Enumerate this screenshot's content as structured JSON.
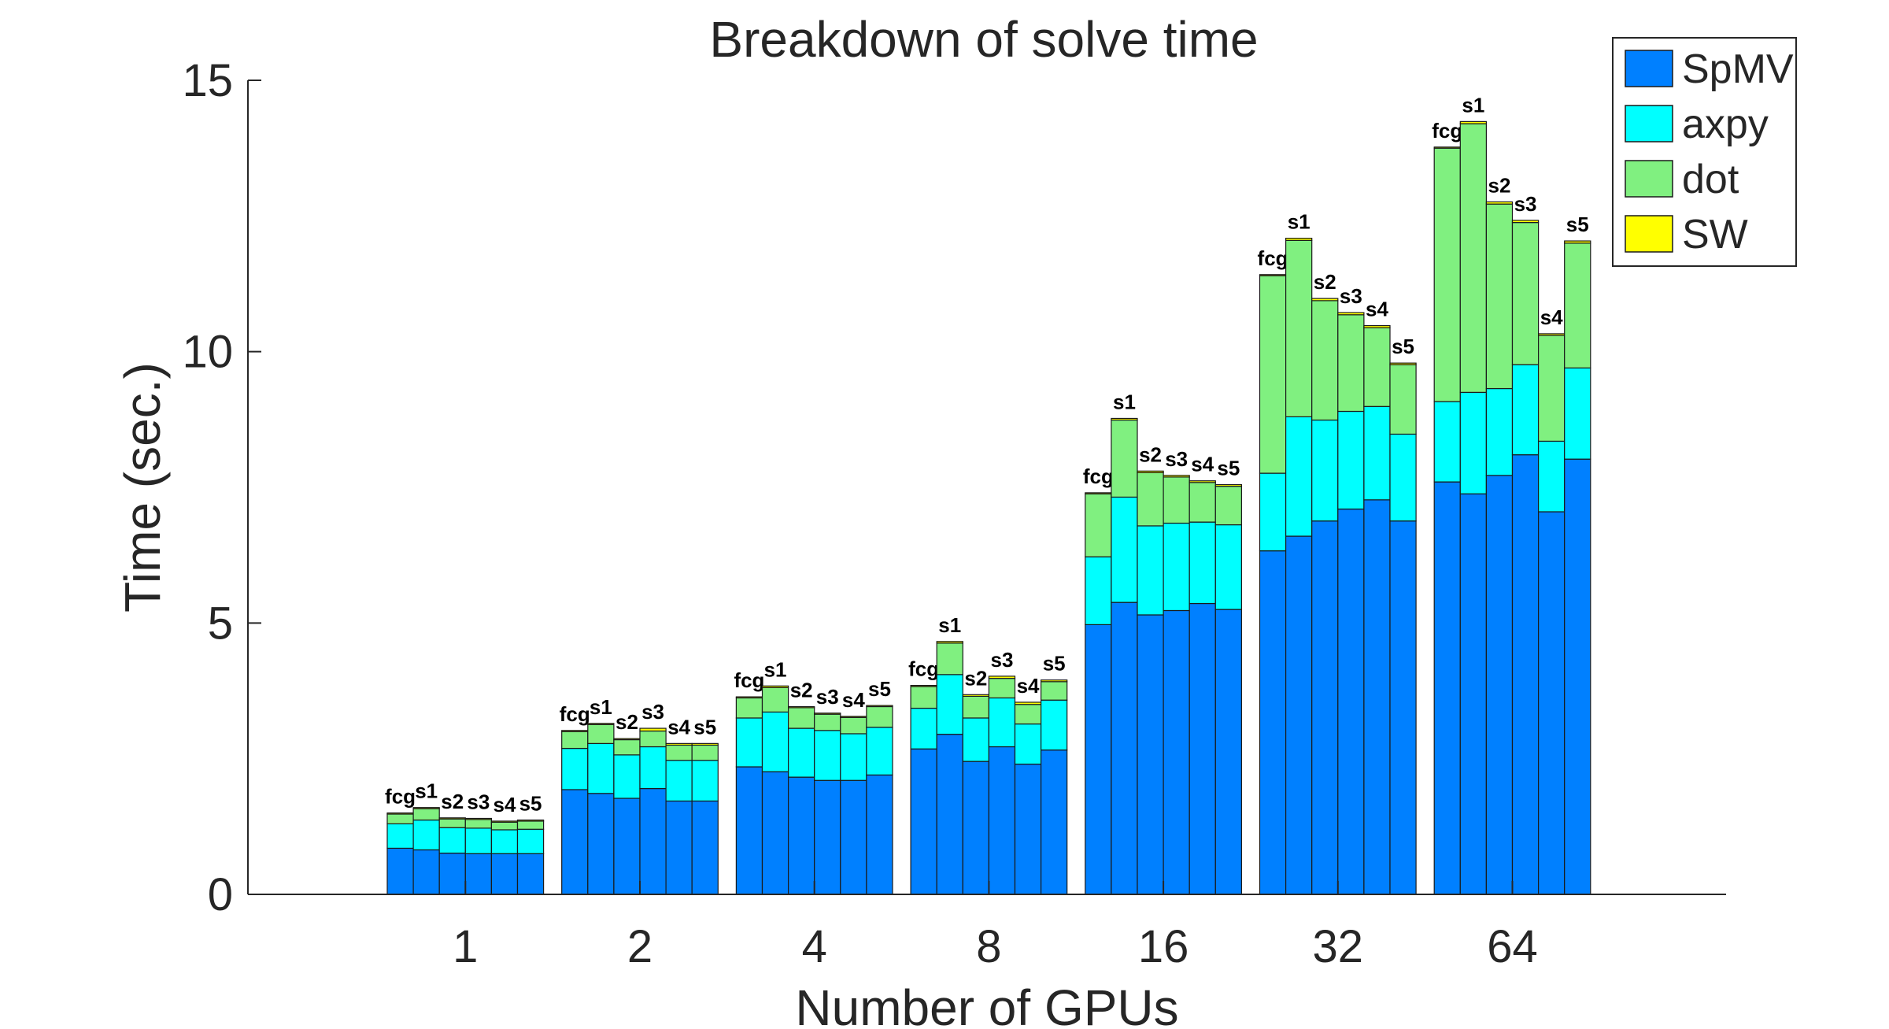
{
  "chart_data": {
    "type": "bar",
    "stacked": true,
    "grouped": true,
    "title": "Breakdown of solve time",
    "xlabel": "Number of GPUs",
    "ylabel": "Time (sec.)",
    "ylim": [
      0,
      15
    ],
    "yticks": [
      "0",
      "5",
      "10",
      "15"
    ],
    "grid": false,
    "legend_position": "top-right",
    "colors": {
      "SpMV": "#0080ff",
      "axpy": "#00ffff",
      "dot": "#80f080",
      "SW": "#ffff00"
    },
    "series_names": [
      "SpMV",
      "axpy",
      "dot",
      "SW"
    ],
    "bar_labels": [
      "fcg",
      "s1",
      "s2",
      "s3",
      "s4",
      "s5"
    ],
    "groups": [
      {
        "label": "1",
        "bars": [
          {
            "name": "fcg",
            "SpMV": 0.85,
            "axpy": 0.45,
            "dot": 0.18,
            "SW": 0.02
          },
          {
            "name": "s1",
            "SpMV": 0.82,
            "axpy": 0.55,
            "dot": 0.21,
            "SW": 0.02
          },
          {
            "name": "s2",
            "SpMV": 0.76,
            "axpy": 0.47,
            "dot": 0.16,
            "SW": 0.02
          },
          {
            "name": "s3",
            "SpMV": 0.75,
            "axpy": 0.47,
            "dot": 0.16,
            "SW": 0.02
          },
          {
            "name": "s4",
            "SpMV": 0.75,
            "axpy": 0.44,
            "dot": 0.14,
            "SW": 0.02
          },
          {
            "name": "s5",
            "SpMV": 0.75,
            "axpy": 0.45,
            "dot": 0.15,
            "SW": 0.02
          }
        ]
      },
      {
        "label": "2",
        "bars": [
          {
            "name": "fcg",
            "SpMV": 1.93,
            "axpy": 0.76,
            "dot": 0.31,
            "SW": 0.02
          },
          {
            "name": "s1",
            "SpMV": 1.86,
            "axpy": 0.92,
            "dot": 0.35,
            "SW": 0.02
          },
          {
            "name": "s2",
            "SpMV": 1.77,
            "axpy": 0.8,
            "dot": 0.28,
            "SW": 0.02
          },
          {
            "name": "s3",
            "SpMV": 1.95,
            "axpy": 0.77,
            "dot": 0.29,
            "SW": 0.05
          },
          {
            "name": "s4",
            "SpMV": 1.72,
            "axpy": 0.75,
            "dot": 0.28,
            "SW": 0.03
          },
          {
            "name": "s5",
            "SpMV": 1.72,
            "axpy": 0.75,
            "dot": 0.28,
            "SW": 0.03
          }
        ]
      },
      {
        "label": "4",
        "bars": [
          {
            "name": "fcg",
            "SpMV": 2.35,
            "axpy": 0.9,
            "dot": 0.37,
            "SW": 0.02
          },
          {
            "name": "s1",
            "SpMV": 2.26,
            "axpy": 1.1,
            "dot": 0.45,
            "SW": 0.03
          },
          {
            "name": "s2",
            "SpMV": 2.16,
            "axpy": 0.9,
            "dot": 0.38,
            "SW": 0.02
          },
          {
            "name": "s3",
            "SpMV": 2.1,
            "axpy": 0.92,
            "dot": 0.3,
            "SW": 0.02
          },
          {
            "name": "s4",
            "SpMV": 2.1,
            "axpy": 0.86,
            "dot": 0.3,
            "SW": 0.02
          },
          {
            "name": "s5",
            "SpMV": 2.2,
            "axpy": 0.88,
            "dot": 0.38,
            "SW": 0.02
          }
        ]
      },
      {
        "label": "8",
        "bars": [
          {
            "name": "fcg",
            "SpMV": 2.68,
            "axpy": 0.75,
            "dot": 0.4,
            "SW": 0.02
          },
          {
            "name": "s1",
            "SpMV": 2.95,
            "axpy": 1.1,
            "dot": 0.58,
            "SW": 0.03
          },
          {
            "name": "s2",
            "SpMV": 2.45,
            "axpy": 0.8,
            "dot": 0.4,
            "SW": 0.03
          },
          {
            "name": "s3",
            "SpMV": 2.72,
            "axpy": 0.9,
            "dot": 0.36,
            "SW": 0.04
          },
          {
            "name": "s4",
            "SpMV": 2.4,
            "axpy": 0.74,
            "dot": 0.36,
            "SW": 0.04
          },
          {
            "name": "s5",
            "SpMV": 2.66,
            "axpy": 0.92,
            "dot": 0.34,
            "SW": 0.03
          }
        ]
      },
      {
        "label": "16",
        "bars": [
          {
            "name": "fcg",
            "SpMV": 4.97,
            "axpy": 1.25,
            "dot": 1.16,
            "SW": 0.02
          },
          {
            "name": "s1",
            "SpMV": 5.38,
            "axpy": 1.94,
            "dot": 1.42,
            "SW": 0.03
          },
          {
            "name": "s2",
            "SpMV": 5.15,
            "axpy": 1.64,
            "dot": 0.98,
            "SW": 0.03
          },
          {
            "name": "s3",
            "SpMV": 5.23,
            "axpy": 1.61,
            "dot": 0.85,
            "SW": 0.03
          },
          {
            "name": "s4",
            "SpMV": 5.36,
            "axpy": 1.5,
            "dot": 0.73,
            "SW": 0.03
          },
          {
            "name": "s5",
            "SpMV": 5.25,
            "axpy": 1.56,
            "dot": 0.71,
            "SW": 0.03
          }
        ]
      },
      {
        "label": "32",
        "bars": [
          {
            "name": "fcg",
            "SpMV": 6.33,
            "axpy": 1.43,
            "dot": 3.64,
            "SW": 0.02
          },
          {
            "name": "s1",
            "SpMV": 6.6,
            "axpy": 2.2,
            "dot": 3.25,
            "SW": 0.04
          },
          {
            "name": "s2",
            "SpMV": 6.88,
            "axpy": 1.86,
            "dot": 2.2,
            "SW": 0.04
          },
          {
            "name": "s3",
            "SpMV": 7.1,
            "axpy": 1.8,
            "dot": 1.78,
            "SW": 0.04
          },
          {
            "name": "s4",
            "SpMV": 7.27,
            "axpy": 1.72,
            "dot": 1.45,
            "SW": 0.04
          },
          {
            "name": "s5",
            "SpMV": 6.88,
            "axpy": 1.6,
            "dot": 1.28,
            "SW": 0.03
          }
        ]
      },
      {
        "label": "64",
        "bars": [
          {
            "name": "fcg",
            "SpMV": 7.6,
            "axpy": 1.48,
            "dot": 4.67,
            "SW": 0.02
          },
          {
            "name": "s1",
            "SpMV": 7.38,
            "axpy": 1.87,
            "dot": 4.95,
            "SW": 0.04
          },
          {
            "name": "s2",
            "SpMV": 7.72,
            "axpy": 1.6,
            "dot": 3.4,
            "SW": 0.04
          },
          {
            "name": "s3",
            "SpMV": 8.1,
            "axpy": 1.66,
            "dot": 2.62,
            "SW": 0.04
          },
          {
            "name": "s4",
            "SpMV": 7.05,
            "axpy": 1.3,
            "dot": 1.95,
            "SW": 0.03
          },
          {
            "name": "s5",
            "SpMV": 8.02,
            "axpy": 1.68,
            "dot": 2.3,
            "SW": 0.04
          }
        ]
      }
    ]
  }
}
